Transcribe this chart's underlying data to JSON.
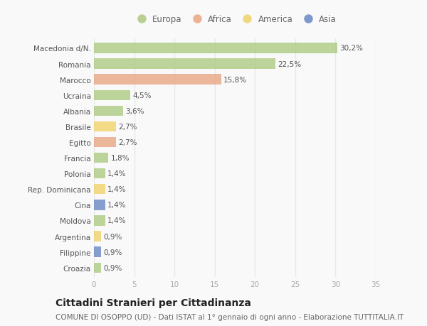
{
  "categories": [
    "Macedonia d/N.",
    "Romania",
    "Marocco",
    "Ucraina",
    "Albania",
    "Brasile",
    "Egitto",
    "Francia",
    "Polonia",
    "Rep. Dominicana",
    "Cina",
    "Moldova",
    "Argentina",
    "Filippine",
    "Croazia"
  ],
  "values": [
    30.2,
    22.5,
    15.8,
    4.5,
    3.6,
    2.7,
    2.7,
    1.8,
    1.4,
    1.4,
    1.4,
    1.4,
    0.9,
    0.9,
    0.9
  ],
  "labels": [
    "30,2%",
    "22,5%",
    "15,8%",
    "4,5%",
    "3,6%",
    "2,7%",
    "2,7%",
    "1,8%",
    "1,4%",
    "1,4%",
    "1,4%",
    "1,4%",
    "0,9%",
    "0,9%",
    "0,9%"
  ],
  "continents": [
    "Europa",
    "Europa",
    "Africa",
    "Europa",
    "Europa",
    "America",
    "Africa",
    "Europa",
    "Europa",
    "America",
    "Asia",
    "Europa",
    "America",
    "Asia",
    "Europa"
  ],
  "continent_colors": {
    "Europa": "#a8c87a",
    "Africa": "#e8a07a",
    "America": "#f0d060",
    "Asia": "#6080c0"
  },
  "legend_order": [
    "Europa",
    "Africa",
    "America",
    "Asia"
  ],
  "xlim": [
    0,
    35
  ],
  "xticks": [
    0,
    5,
    10,
    15,
    20,
    25,
    30,
    35
  ],
  "title": "Cittadini Stranieri per Cittadinanza",
  "subtitle": "COMUNE DI OSOPPO (UD) - Dati ISTAT al 1° gennaio di ogni anno - Elaborazione TUTTITALIA.IT",
  "background_color": "#f9f9f9",
  "grid_color": "#e8e8e8",
  "bar_height": 0.65,
  "title_fontsize": 10,
  "subtitle_fontsize": 7.5,
  "label_fontsize": 7.5,
  "tick_fontsize": 7.5,
  "legend_fontsize": 8.5
}
